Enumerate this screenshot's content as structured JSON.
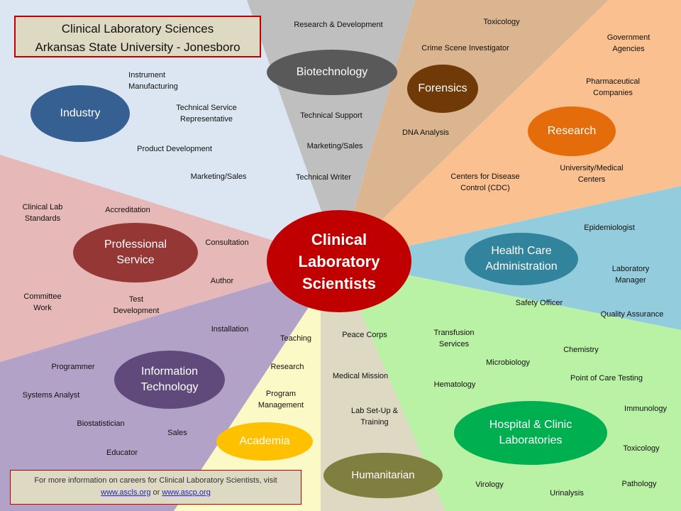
{
  "title": {
    "line1": "Clinical Laboratory Sciences",
    "line2": "Arkansas State University  - Jonesboro"
  },
  "center": {
    "lines": [
      "Clinical",
      "Laboratory",
      "Scientists"
    ],
    "color": "#c00000"
  },
  "sectors": {
    "industry": {
      "name": "Industry",
      "color": "#376092",
      "bg": "#dce6f2",
      "items": [
        [
          "Instrument",
          "Manufacturing"
        ],
        [
          "Technical Service",
          "Representative"
        ],
        [
          "Product Development"
        ],
        [
          "Marketing/Sales"
        ]
      ]
    },
    "biotechnology": {
      "name": "Biotechnology",
      "color": "#595959",
      "bg": "#bfbfbf",
      "items": [
        [
          "Research & Development"
        ],
        [
          "Technical Support"
        ],
        [
          "Marketing/Sales"
        ],
        [
          "Technical Writer"
        ]
      ]
    },
    "forensics": {
      "name": "Forensics",
      "color": "#6f3a08",
      "bg": "#dbb58f",
      "items": [
        [
          "Toxicology"
        ],
        [
          "Crime Scene Investigator"
        ],
        [
          "DNA Analysis"
        ]
      ]
    },
    "research": {
      "name": "Research",
      "color": "#e46c0a",
      "bg": "#fac090",
      "items": [
        [
          "Government",
          "Agencies"
        ],
        [
          "Pharmaceutical",
          "Companies"
        ],
        [
          "University/Medical",
          "Centers"
        ],
        [
          "Centers for Disease",
          "Control (CDC)"
        ]
      ]
    },
    "health": {
      "name": [
        "Health Care",
        "Administration"
      ],
      "color": "#31849b",
      "bg": "#93cddd",
      "items": [
        [
          "Epidemiologist"
        ],
        [
          "Laboratory",
          "Manager"
        ],
        [
          "Safety Officer"
        ],
        [
          "Quality Assurance"
        ]
      ]
    },
    "hospital": {
      "name": [
        "Hospital & Clinic",
        "Laboratories"
      ],
      "color": "#00b050",
      "bg": "#b9f1a5",
      "items": [
        [
          "Transfusion",
          "Services"
        ],
        [
          "Chemistry"
        ],
        [
          "Microbiology"
        ],
        [
          "Point of Care Testing"
        ],
        [
          "Hematology"
        ],
        [
          "Immunology"
        ],
        [
          "Toxicology"
        ],
        [
          "Virology"
        ],
        [
          "Urinalysis"
        ],
        [
          "Pathology"
        ]
      ]
    },
    "humanitarian": {
      "name": "Humanitarian",
      "color": "#7f7f3f",
      "bg": "#ddd9c3",
      "items": [
        [
          "Peace Corps"
        ],
        [
          "Medical Mission"
        ],
        [
          "Lab Set-Up  &",
          "Training"
        ]
      ]
    },
    "academia": {
      "name": "Academia",
      "color": "#ffc000",
      "bg": "#fbf9c5",
      "items": [
        [
          "Teaching"
        ],
        [
          "Research"
        ],
        [
          "Program",
          "Management"
        ]
      ]
    },
    "it": {
      "name": [
        "Information",
        "Technology"
      ],
      "color": "#604a7b",
      "bg": "#b3a2c7",
      "items": [
        [
          "Installation"
        ],
        [
          "Programmer"
        ],
        [
          "Systems Analyst"
        ],
        [
          "Biostatistician"
        ],
        [
          "Sales"
        ],
        [
          "Educator"
        ]
      ]
    },
    "professional": {
      "name": [
        "Professional",
        "Service"
      ],
      "color": "#953735",
      "bg": "#e6b9b8",
      "items": [
        [
          "Clinical Lab",
          "Standards"
        ],
        [
          "Accreditation"
        ],
        [
          "Consultation"
        ],
        [
          "Author"
        ],
        [
          "Committee",
          "Work"
        ],
        [
          "Test",
          "Development"
        ]
      ]
    }
  },
  "footer": {
    "text": "For more  information on careers for Clinical Laboratory Scientists, visit",
    "link1": "www.ascls.org",
    "or": " or ",
    "link2": "www.ascp.org"
  }
}
